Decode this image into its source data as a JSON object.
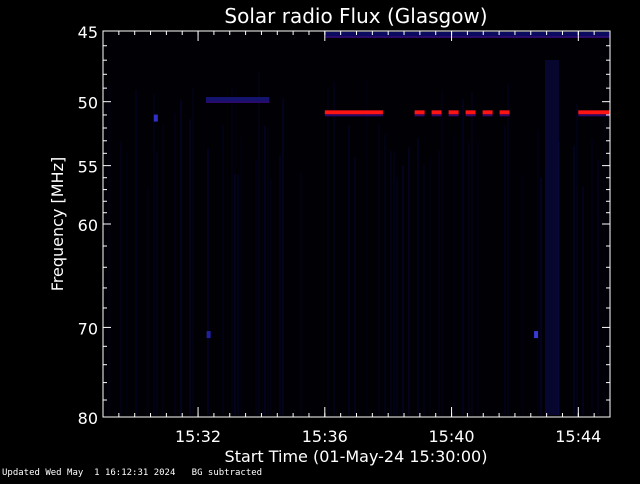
{
  "chart_data": {
    "type": "heatmap",
    "title": "Solar radio Flux (Glasgow)",
    "xlabel": "Start Time (01-May-24 15:30:00)",
    "ylabel": "Frequency [MHz]",
    "x_unit": "time of day (HH:MM)",
    "xlim": [
      "15:29:00",
      "15:45:00"
    ],
    "x_ticks": [
      "15:32",
      "15:36",
      "15:40",
      "15:44"
    ],
    "ylim": [
      45,
      80
    ],
    "y_scale": "log",
    "y_ticks": [
      45,
      50,
      55,
      60,
      70,
      80
    ],
    "y_tick_labels": [
      "45",
      "50",
      "55",
      "60",
      "70",
      "80"
    ],
    "background_color": "#000005",
    "emission_lines": [
      {
        "frequency": 50.8,
        "from": "15:36:00",
        "to": "15:37:50",
        "color": "#ff1414"
      },
      {
        "frequency": 50.8,
        "from": "15:38:50",
        "to": "15:42:00",
        "color": "#ff1414",
        "dashed": true
      },
      {
        "frequency": 50.8,
        "from": "15:44:00",
        "to": "15:45:00",
        "color": "#ff1414"
      },
      {
        "frequency": 49.8,
        "from": "15:32:15",
        "to": "15:34:15",
        "color": "#14146e"
      },
      {
        "frequency": 45.2,
        "from": "15:36:00",
        "to": "15:45:00",
        "color": "#0a0a60"
      }
    ],
    "faint_patches": [
      {
        "frequency": 51.2,
        "time": "15:30:40",
        "color": "#3030c8"
      },
      {
        "frequency": 70.7,
        "time": "15:42:40",
        "color": "#3a3ad2"
      },
      {
        "frequency": 70.7,
        "time": "15:32:20",
        "color": "#2020a0"
      }
    ]
  },
  "footer": {
    "updated": "Updated Wed May  1 16:12:31 2024",
    "note": "BG subtracted"
  }
}
